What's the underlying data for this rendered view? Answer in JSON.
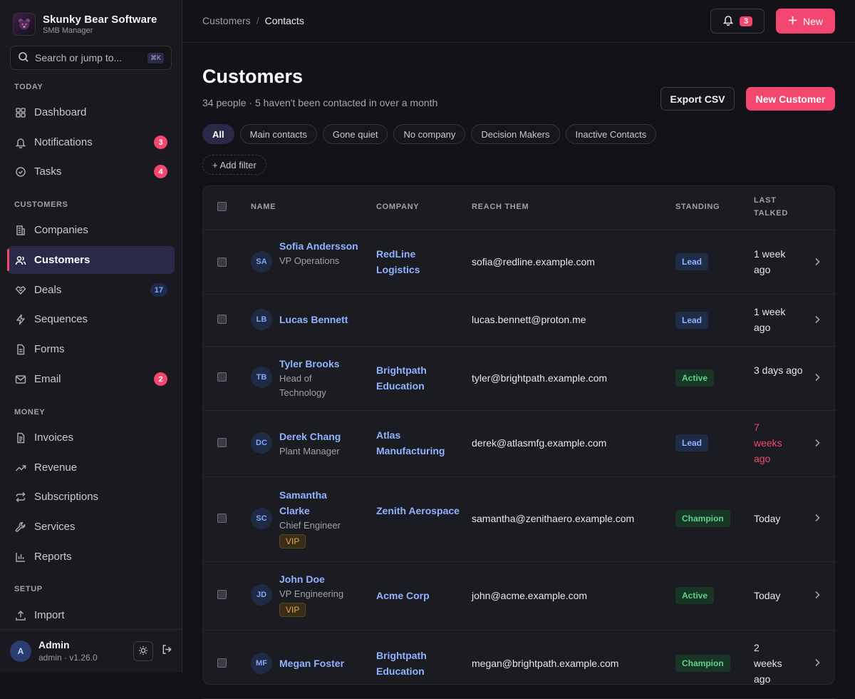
{
  "brand": {
    "name": "Skunky Bear Software",
    "subtitle": "SMB Manager"
  },
  "search": {
    "placeholder": "Search or jump to...",
    "shortcut": "⌘K"
  },
  "sidebar": {
    "sections": {
      "today": "TODAY",
      "customers": "CUSTOMERS",
      "money": "MONEY",
      "setup": "SETUP"
    },
    "items": {
      "dashboard": {
        "label": "Dashboard",
        "icon": "dashboard-icon"
      },
      "notifications": {
        "label": "Notifications",
        "icon": "bell-icon",
        "badge": "3"
      },
      "tasks": {
        "label": "Tasks",
        "icon": "check-circle-icon",
        "badge": "4"
      },
      "companies": {
        "label": "Companies",
        "icon": "building-icon"
      },
      "customers": {
        "label": "Customers",
        "icon": "users-icon"
      },
      "deals": {
        "label": "Deals",
        "icon": "handshake-icon",
        "badge": "17"
      },
      "sequences": {
        "label": "Sequences",
        "icon": "lightning-icon"
      },
      "forms": {
        "label": "Forms",
        "icon": "document-icon"
      },
      "email": {
        "label": "Email",
        "icon": "mail-icon",
        "badge": "2"
      },
      "invoices": {
        "label": "Invoices",
        "icon": "invoice-icon"
      },
      "revenue": {
        "label": "Revenue",
        "icon": "trend-up-icon"
      },
      "subscriptions": {
        "label": "Subscriptions",
        "icon": "repeat-icon"
      },
      "services": {
        "label": "Services",
        "icon": "wrench-icon"
      },
      "reports": {
        "label": "Reports",
        "icon": "bar-chart-icon"
      },
      "import": {
        "label": "Import",
        "icon": "upload-icon"
      }
    }
  },
  "user": {
    "initial": "A",
    "name": "Admin",
    "meta": "admin · v1.26.0"
  },
  "topbar": {
    "breadcrumb": [
      "Customers",
      "/",
      "Contacts"
    ],
    "notification_count": "3",
    "new_label": "New"
  },
  "page": {
    "title": "Customers",
    "subtitle": "34 people · 5 haven't been contacted in over a month",
    "export_label": "Export CSV",
    "new_customer_label": "New Customer",
    "filters": [
      "All",
      "Main contacts",
      "Gone quiet",
      "No company",
      "Decision Makers",
      "Inactive Contacts"
    ],
    "active_filter": "All",
    "add_filter_label": "+ Add filter"
  },
  "table": {
    "headers": {
      "name": "NAME",
      "company": "COMPANY",
      "reach": "REACH THEM",
      "standing": "STANDING",
      "last_talked_1": "LAST",
      "last_talked_2": "TALKED"
    },
    "rows": [
      {
        "initials": "SA",
        "name": "Sofia Andersson",
        "title": "VP Operations",
        "vip": "",
        "company": "RedLine Logistics",
        "email": "sofia@redline.example.com",
        "standing": "Lead",
        "last_talked": "1 week ago",
        "stale": false
      },
      {
        "initials": "LB",
        "name": "Lucas Bennett",
        "title": "",
        "vip": "",
        "company": "",
        "email": "lucas.bennett@proton.me",
        "standing": "Lead",
        "last_talked": "1 week ago",
        "stale": false
      },
      {
        "initials": "TB",
        "name": "Tyler Brooks",
        "title": "Head of Technology",
        "vip": "",
        "company": "Brightpath Education",
        "email": "tyler@brightpath.example.com",
        "standing": "Active",
        "last_talked": "3 days ago",
        "stale": false
      },
      {
        "initials": "DC",
        "name": "Derek Chang",
        "title": "Plant Manager",
        "vip": "",
        "company": "Atlas Manufacturing",
        "email": "derek@atlasmfg.example.com",
        "standing": "Lead",
        "last_talked": "7 weeks ago",
        "stale": true
      },
      {
        "initials": "SC",
        "name": "Samantha Clarke",
        "title": "Chief Engineer",
        "vip": "VIP",
        "company": "Zenith Aerospace",
        "email": "samantha@zenithaero.example.com",
        "standing": "Champion",
        "last_talked": "Today",
        "stale": false
      },
      {
        "initials": "JD",
        "name": "John Doe",
        "title": "VP Engineering",
        "vip": "VIP",
        "company": "Acme Corp",
        "email": "john@acme.example.com",
        "standing": "Active",
        "last_talked": "Today",
        "stale": false
      },
      {
        "initials": "MF",
        "name": "Megan Foster",
        "title": "",
        "vip": "",
        "company": "Brightpath Education",
        "email": "megan@brightpath.example.com",
        "standing": "Champion",
        "last_talked": "2 weeks ago",
        "stale": false
      }
    ]
  },
  "colors": {
    "accent": "#f3476f",
    "link": "#8fb3ff",
    "background": "#121218",
    "sidebar": "#19191f"
  }
}
